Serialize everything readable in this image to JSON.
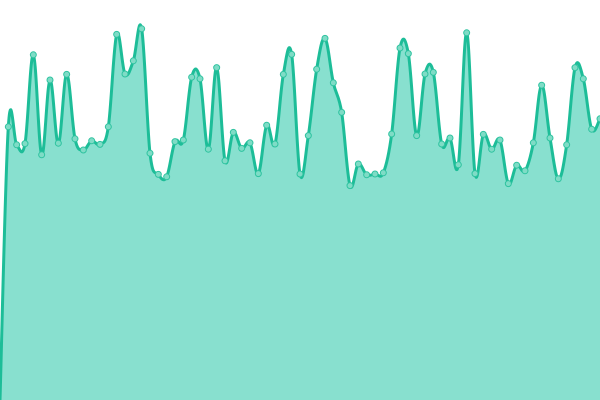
{
  "chart_data": {
    "type": "area",
    "title": "",
    "xlabel": "",
    "ylabel": "",
    "ylim": [
      0,
      100
    ],
    "grid": false,
    "legend": "none",
    "smooth": true,
    "show_points": true,
    "colors": {
      "line": "#1dbd98",
      "fill": "#88e0cf",
      "point_fill": "#7fdcc6",
      "point_stroke": "#2fc3a0"
    },
    "values": [
      0,
      68.3,
      63.8,
      64.1,
      86.3,
      61.3,
      80,
      64.2,
      81.4,
      65.3,
      62.5,
      64.8,
      63.9,
      68.3,
      91.4,
      81.5,
      84.8,
      92.8,
      61.7,
      56.4,
      55.8,
      64.6,
      65,
      80.7,
      80.3,
      62.7,
      83.1,
      59.8,
      66.9,
      62.9,
      64.3,
      56.6,
      68.7,
      64,
      81.4,
      86.4,
      56.5,
      66.1,
      82.7,
      90.4,
      79.3,
      71.9,
      53.6,
      59,
      56.3,
      56.5,
      56.8,
      66.5,
      88,
      86.6,
      66.1,
      81.5,
      81.9,
      64,
      65.5,
      58.8,
      91.8,
      56.6,
      66.4,
      62.7,
      65,
      54.1,
      58.7,
      57.3,
      64.3,
      78.7,
      65.5,
      55.3,
      63.8,
      83.1,
      80.3,
      67.7,
      70.3
    ]
  }
}
